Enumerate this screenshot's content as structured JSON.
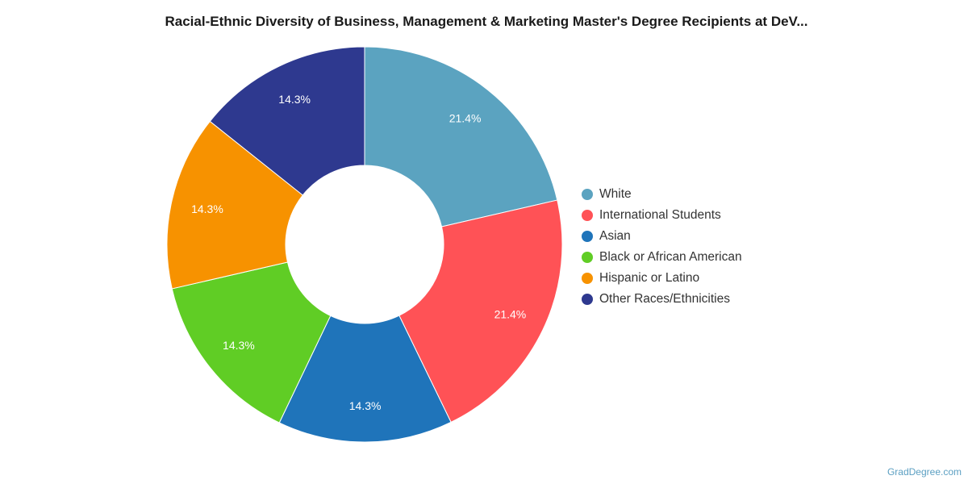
{
  "chart_data": {
    "type": "pie",
    "donut": true,
    "title": "Racial-Ethnic Diversity of Business, Management & Marketing Master's Degree Recipients at DeV...",
    "slices": [
      {
        "label": "White",
        "value": 21.4,
        "display": "21.4%",
        "color": "#5ba3c0"
      },
      {
        "label": "International Students",
        "value": 21.4,
        "display": "21.4%",
        "color": "#ff5256"
      },
      {
        "label": "Asian",
        "value": 14.3,
        "display": "14.3%",
        "color": "#1f74ba"
      },
      {
        "label": "Black or African American",
        "value": 14.3,
        "display": "14.3%",
        "color": "#60cd25"
      },
      {
        "label": "Hispanic or Latino",
        "value": 14.3,
        "display": "14.3%",
        "color": "#f79200"
      },
      {
        "label": "Other Races/Ethnicities",
        "value": 14.3,
        "display": "14.3%",
        "color": "#2e398f"
      }
    ],
    "legend_position": "right"
  },
  "credit": "GradDegree.com"
}
